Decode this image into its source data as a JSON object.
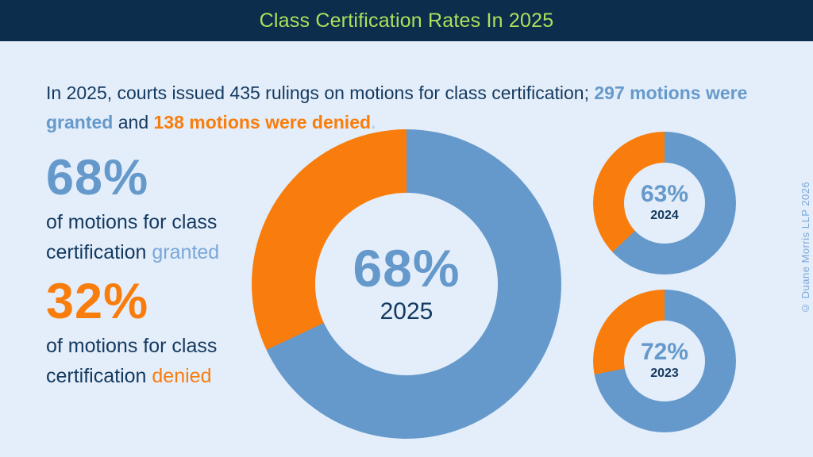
{
  "header": {
    "title": "Class Certification Rates In 2025"
  },
  "intro": {
    "lead": "In 2025, courts issued 435 rulings on motions for class certification; ",
    "granted_phrase": "297 motions were granted",
    "conjunction": " and ",
    "denied_phrase": "138 motions were denied",
    "period": "."
  },
  "stats": {
    "granted": {
      "value": "68%",
      "label": "of motions for class certification",
      "highlight": "granted"
    },
    "denied": {
      "value": "32%",
      "label": "of motions for class certification",
      "highlight": "denied"
    }
  },
  "chart_data": [
    {
      "type": "pie",
      "variant": "donut",
      "size": "large",
      "year": "2025",
      "center_label": "68%",
      "categories": [
        "granted",
        "denied"
      ],
      "values": [
        68,
        32
      ],
      "unit": "percent",
      "start_angle_deg": 0,
      "direction": "clockwise"
    },
    {
      "type": "pie",
      "variant": "donut",
      "size": "small",
      "year": "2024",
      "center_label": "63%",
      "categories": [
        "granted",
        "denied"
      ],
      "values": [
        63,
        37
      ],
      "unit": "percent",
      "start_angle_deg": 0,
      "direction": "clockwise"
    },
    {
      "type": "pie",
      "variant": "donut",
      "size": "small",
      "year": "2023",
      "center_label": "72%",
      "categories": [
        "granted",
        "denied"
      ],
      "values": [
        72,
        28
      ],
      "unit": "percent",
      "start_angle_deg": 0,
      "direction": "clockwise"
    }
  ],
  "watermark": "© Duane Morris LLP 2026",
  "colors": {
    "header_bg": "#0d2d4d",
    "page_bg": "#e3eefa",
    "title_green": "#abe15b",
    "granted": "#6699cb",
    "granted_light": "#7aa7d8",
    "denied": "#f97d0c",
    "text_navy": "#14395f"
  }
}
